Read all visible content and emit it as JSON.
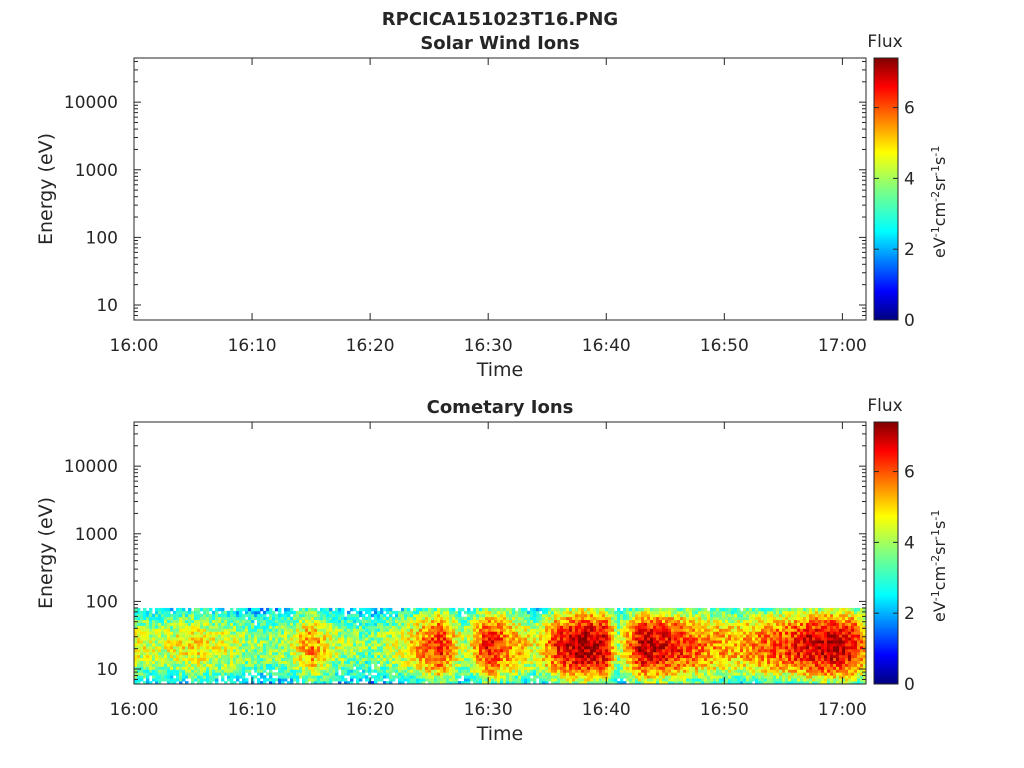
{
  "figure": {
    "title": "RPCICA151023T16.PNG"
  },
  "colorbar": {
    "label": "Flux",
    "unit_base": "eV",
    "unit_parts": [
      {
        "base": "eV",
        "exp": "-1"
      },
      {
        "base": "cm",
        "exp": "-2"
      },
      {
        "base": "sr",
        "exp": "-1"
      },
      {
        "base": "s",
        "exp": "-1"
      }
    ],
    "ticks": [
      "0",
      "2",
      "4",
      "6"
    ],
    "range": [
      0,
      7.4
    ],
    "colormap": "jet"
  },
  "chart_data": [
    {
      "type": "heatmap",
      "title": "Solar Wind Ions",
      "xlabel": "Time",
      "ylabel": "Energy (eV)",
      "x_ticks": [
        "16:00",
        "16:10",
        "16:20",
        "16:30",
        "16:40",
        "16:50",
        "17:00"
      ],
      "y_ticks": [
        "10",
        "100",
        "1000",
        "10000"
      ],
      "y_scale": "log",
      "ylim": [
        6,
        45000
      ],
      "xlim": [
        "16:00",
        "17:02"
      ],
      "data": "empty"
    },
    {
      "type": "heatmap",
      "title": "Cometary Ions",
      "xlabel": "Time",
      "ylabel": "Energy (eV)",
      "x_ticks": [
        "16:00",
        "16:10",
        "16:20",
        "16:30",
        "16:40",
        "16:50",
        "17:00"
      ],
      "y_ticks": [
        "10",
        "100",
        "1000",
        "10000"
      ],
      "y_scale": "log",
      "ylim": [
        6,
        45000
      ],
      "xlim": [
        "16:00",
        "17:02"
      ],
      "energy_range_ev": [
        6,
        80
      ],
      "intensity_profile": [
        {
          "t": "16:00",
          "level": 4.6
        },
        {
          "t": "16:02",
          "level": 4.2
        },
        {
          "t": "16:05",
          "level": 4.8
        },
        {
          "t": "16:08",
          "level": 4.4
        },
        {
          "t": "16:10",
          "level": 3.8
        },
        {
          "t": "16:13",
          "level": 4.0
        },
        {
          "t": "16:15",
          "level": 5.6
        },
        {
          "t": "16:17",
          "level": 4.2
        },
        {
          "t": "16:20",
          "level": 3.6
        },
        {
          "t": "16:23",
          "level": 4.6
        },
        {
          "t": "16:26",
          "level": 6.4
        },
        {
          "t": "16:28",
          "level": 4.0
        },
        {
          "t": "16:30",
          "level": 6.6
        },
        {
          "t": "16:32",
          "level": 5.4
        },
        {
          "t": "16:34",
          "level": 4.4
        },
        {
          "t": "16:36",
          "level": 6.4
        },
        {
          "t": "16:38",
          "level": 7.2
        },
        {
          "t": "16:40",
          "level": 6.8
        },
        {
          "t": "16:41",
          "level": 4.0
        },
        {
          "t": "16:43",
          "level": 7.0
        },
        {
          "t": "16:45",
          "level": 6.6
        },
        {
          "t": "16:47",
          "level": 6.0
        },
        {
          "t": "16:49",
          "level": 5.4
        },
        {
          "t": "16:51",
          "level": 5.2
        },
        {
          "t": "16:53",
          "level": 5.6
        },
        {
          "t": "16:55",
          "level": 6.0
        },
        {
          "t": "16:57",
          "level": 6.6
        },
        {
          "t": "16:59",
          "level": 7.0
        },
        {
          "t": "17:01",
          "level": 6.6
        },
        {
          "t": "17:02",
          "level": 5.4
        }
      ]
    }
  ]
}
